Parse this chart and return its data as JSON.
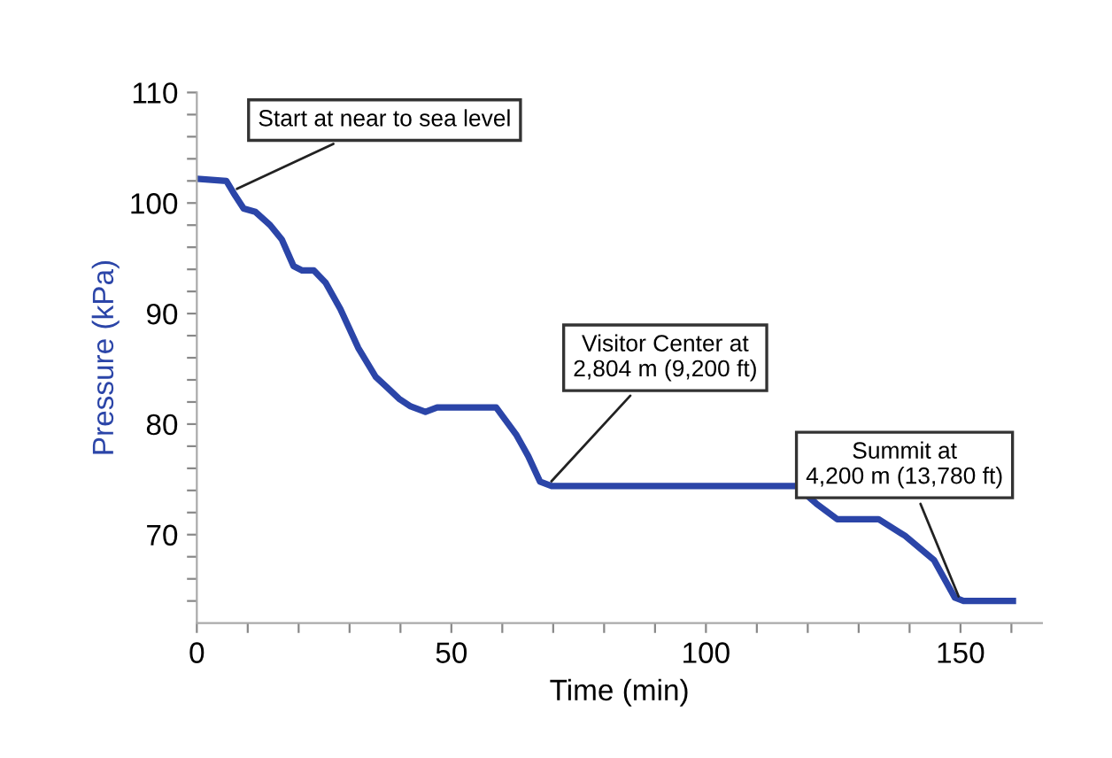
{
  "chart_data": {
    "type": "line",
    "xlabel": "Time (min)",
    "ylabel": "Pressure (kPa)",
    "xlim": [
      0,
      166
    ],
    "ylim": [
      62,
      110
    ],
    "xticks": [
      0,
      {
        "value": 10,
        "label": null
      },
      {
        "value": 20,
        "label": null
      },
      {
        "value": 30,
        "label": null
      },
      {
        "value": 40,
        "label": null
      },
      50,
      {
        "value": 60,
        "label": null
      },
      {
        "value": 70,
        "label": null
      },
      {
        "value": 80,
        "label": null
      },
      {
        "value": 90,
        "label": null
      },
      100,
      {
        "value": 110,
        "label": null
      },
      {
        "value": 120,
        "label": null
      },
      {
        "value": 130,
        "label": null
      },
      {
        "value": 140,
        "label": null
      },
      150,
      {
        "value": 160,
        "label": null
      }
    ],
    "yticks": [
      {
        "value": 64,
        "label": null
      },
      {
        "value": 66,
        "label": null
      },
      {
        "value": 68,
        "label": null
      },
      70,
      {
        "value": 72,
        "label": null
      },
      {
        "value": 74,
        "label": null
      },
      {
        "value": 76,
        "label": null
      },
      {
        "value": 78,
        "label": null
      },
      80,
      {
        "value": 82,
        "label": null
      },
      {
        "value": 84,
        "label": null
      },
      {
        "value": 86,
        "label": null
      },
      {
        "value": 88,
        "label": null
      },
      90,
      {
        "value": 92,
        "label": null
      },
      {
        "value": 94,
        "label": null
      },
      {
        "value": 96,
        "label": null
      },
      {
        "value": 98,
        "label": null
      },
      100,
      {
        "value": 102,
        "label": null
      },
      {
        "value": 104,
        "label": null
      },
      {
        "value": 106,
        "label": null
      },
      {
        "value": 108,
        "label": null
      },
      110
    ],
    "grid": false,
    "marker": "none",
    "line_style": "solid",
    "series": [
      {
        "color": "#2b45a8",
        "x": [
          0,
          5.8,
          7.5,
          9.2,
          11.5,
          14.4,
          16.7,
          19,
          20.7,
          23,
          25.3,
          28.2,
          31.7,
          35.1,
          37.4,
          39.7,
          42,
          44.9,
          47.2,
          51.3,
          58.8,
          62.8,
          65.1,
          67.4,
          69.7,
          117.7,
          121.7,
          125.8,
          133.9,
          139.1,
          144.8,
          148.9,
          150.6,
          160.3
        ],
        "values": [
          102.2,
          102,
          100.7,
          99.5,
          99.2,
          98,
          96.7,
          94.3,
          93.9,
          93.9,
          92.8,
          90.4,
          86.9,
          84.3,
          83.3,
          82.3,
          81.6,
          81.1,
          81.5,
          81.5,
          81.5,
          79,
          77.1,
          74.8,
          74.4,
          74.4,
          72.8,
          71.4,
          71.4,
          69.9,
          67.7,
          64.3,
          64,
          64
        ]
      }
    ],
    "annotations": [
      {
        "text": "Start at near to sea level",
        "x": 7,
        "y": 101.1
      },
      {
        "text": "Visitor Center at\n2,804 m (9,200 ft)",
        "x": 69,
        "y": 74.5
      },
      {
        "text": "Summit at\n4,200 m (13,780 ft)",
        "x": 150,
        "y": 64
      }
    ]
  }
}
